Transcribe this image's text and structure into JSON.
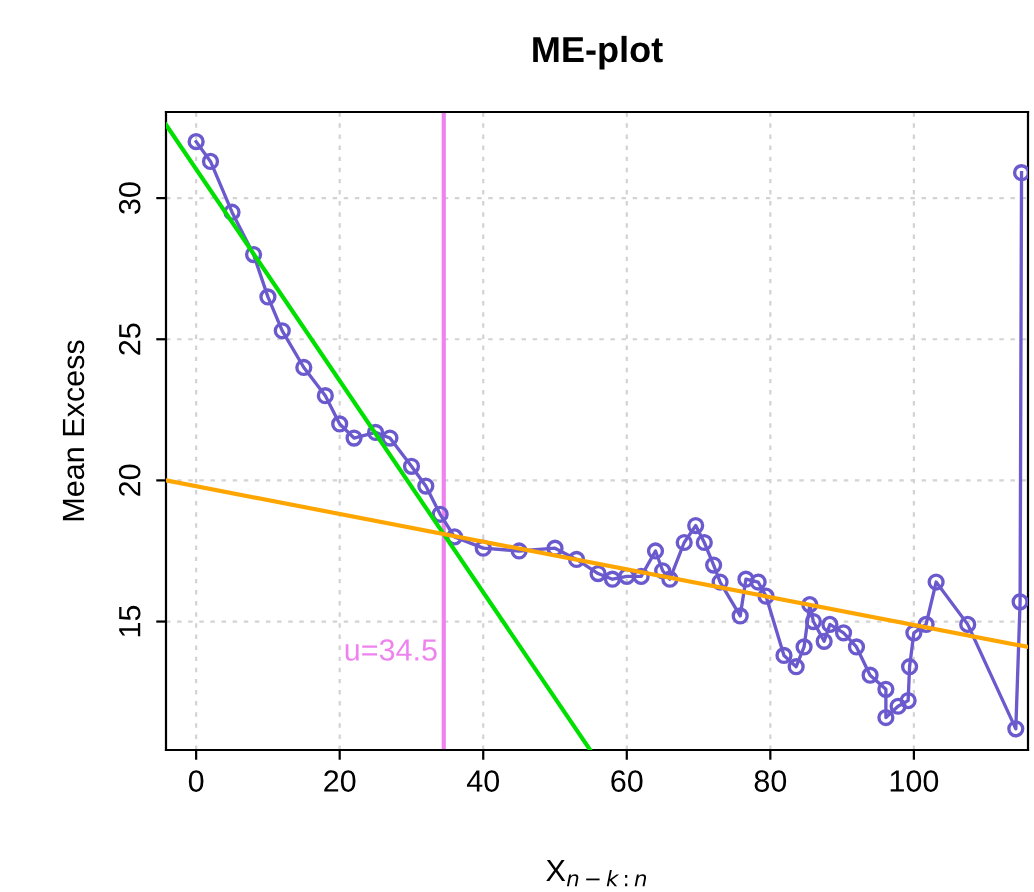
{
  "chart_data": {
    "type": "line",
    "title": "ME-plot",
    "xlabel": "X$_{n−k:n}$",
    "ylabel": "Mean Excess",
    "xlim": [
      -4.2,
      115.9
    ],
    "ylim": [
      10.45,
      33.05
    ],
    "xticks": [
      0,
      20,
      40,
      60,
      80,
      100
    ],
    "yticks": [
      15,
      20,
      25,
      30
    ],
    "grid": true,
    "series": [
      {
        "color": "#6a5acd",
        "marker": "circle",
        "x": [
          0,
          2,
          5,
          8,
          10,
          12,
          15,
          18,
          20,
          22,
          25,
          27,
          30,
          32,
          34,
          36,
          40,
          45,
          50,
          53,
          56,
          58,
          60,
          62,
          64,
          65,
          66,
          68,
          69.6,
          70.8,
          72.1,
          73,
          75.8,
          76.6,
          78.3,
          79.4,
          81.9,
          83.6,
          84.7,
          85.5,
          86,
          87.5,
          88.3,
          90.2,
          92,
          93.9,
          96.1,
          96.1,
          97.8,
          99.2,
          99.4,
          100,
          101.7,
          103.1,
          107.5,
          114.2,
          114.8,
          115
        ],
        "values": [
          32.0,
          31.3,
          29.5,
          28.0,
          26.5,
          25.3,
          24.0,
          23.0,
          22.0,
          21.5,
          21.7,
          21.5,
          20.5,
          19.8,
          18.8,
          18.0,
          17.6,
          17.5,
          17.6,
          17.2,
          16.7,
          16.5,
          16.6,
          16.6,
          17.5,
          16.8,
          16.5,
          17.8,
          18.4,
          17.8,
          17.0,
          16.4,
          15.2,
          16.5,
          16.4,
          15.9,
          13.8,
          13.4,
          14.1,
          15.6,
          15.0,
          14.3,
          14.9,
          14.6,
          14.1,
          13.1,
          12.6,
          11.6,
          12.0,
          12.2,
          13.4,
          14.6,
          14.9,
          16.4,
          14.9,
          11.2,
          15.7,
          30.9
        ]
      },
      {
        "color": "#00e000",
        "marker": "none",
        "x": [
          -4.2,
          54.9
        ],
        "values": [
          32.6,
          10.45
        ]
      },
      {
        "color": "#ffa500",
        "marker": "none",
        "x": [
          -4.2,
          115.9
        ],
        "values": [
          20.0,
          14.1
        ]
      }
    ],
    "ref_lines": [
      {
        "axis": "x",
        "value": 34.5,
        "color": "#ee82ee"
      }
    ],
    "annotations": [
      {
        "text": "u=34.5",
        "x": 34.5,
        "y": 13.9
      }
    ]
  }
}
